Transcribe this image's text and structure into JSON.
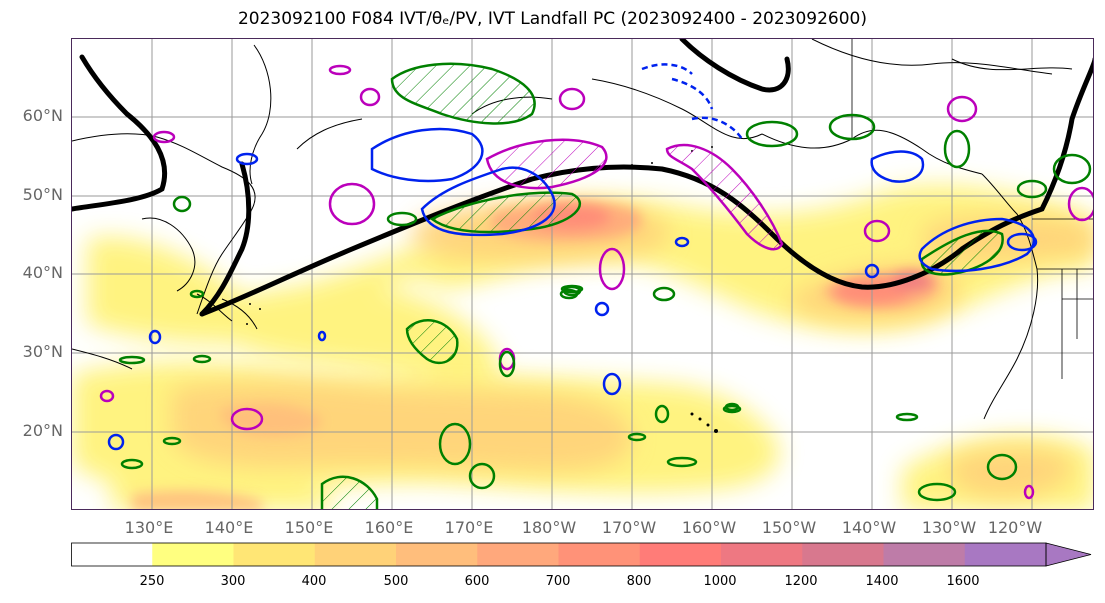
{
  "title": "2023092100 F084 IVT/θₑ/PV, IVT Landfall PC (2023092400 - 2023092600)",
  "map": {
    "projection": "PlateCarree",
    "region": "North Pacific",
    "lon_range": [
      121,
      244
    ],
    "lat_range": [
      10,
      70
    ],
    "lat_labels": [
      "60°N",
      "50°N",
      "40°N",
      "30°N",
      "20°N"
    ],
    "lon_labels": [
      "130°E",
      "140°E",
      "150°E",
      "160°E",
      "170°E",
      "180°W",
      "170°W",
      "160°W",
      "150°W",
      "140°W",
      "130°W",
      "120°W"
    ],
    "gridlines": true,
    "contour_colors": {
      "thick_line": "#000000",
      "theta_e": "#008000",
      "pv": "#0022ee",
      "landfall_pc": "#bb00bb"
    }
  },
  "colorbar": {
    "levels": [
      "250",
      "300",
      "400",
      "500",
      "600",
      "700",
      "800",
      "1000",
      "1200",
      "1400",
      "1600"
    ],
    "colors": [
      "#ffffff",
      "#ffff80",
      "#ffe675",
      "#ffd278",
      "#ffbe7c",
      "#ffa87c",
      "#ff9278",
      "#ff7c78",
      "#ee7882",
      "#d8788e",
      "#be7ca8",
      "#a878c2"
    ],
    "extend": "max"
  }
}
